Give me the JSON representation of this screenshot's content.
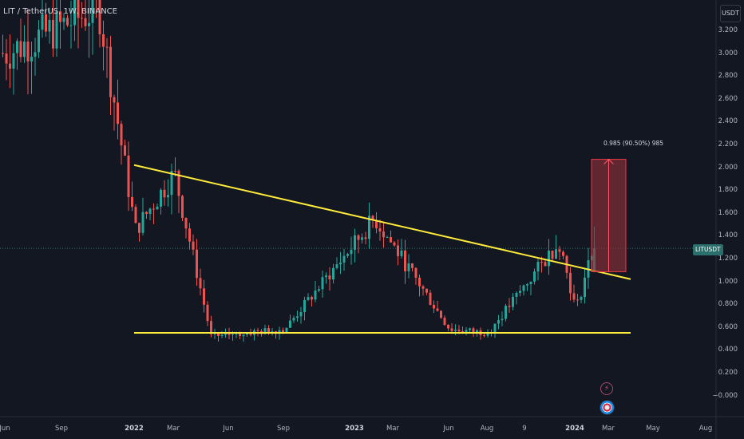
{
  "title": "LIT / TetherUS, 1W, BINANCE",
  "price_axis": {
    "unit": "USDT",
    "ticks": [
      "3.200",
      "3.000",
      "2.800",
      "2.600",
      "2.400",
      "2.200",
      "2.000",
      "1.800",
      "1.600",
      "1.400",
      "1.200",
      "1.000",
      "0.800",
      "0.600",
      "0.400",
      "0.200",
      "−0.000"
    ],
    "current_price_label": "LITUSDT"
  },
  "time_axis": {
    "ticks": [
      {
        "label": "Jun",
        "bold": false
      },
      {
        "label": "Sep",
        "bold": false
      },
      {
        "label": "2022",
        "bold": true
      },
      {
        "label": "Mar",
        "bold": false
      },
      {
        "label": "Jun",
        "bold": false
      },
      {
        "label": "Sep",
        "bold": false
      },
      {
        "label": "2023",
        "bold": true
      },
      {
        "label": "Mar",
        "bold": false
      },
      {
        "label": "Jun",
        "bold": false
      },
      {
        "label": "Aug",
        "bold": false
      },
      {
        "label": "9",
        "bold": false
      },
      {
        "label": "2024",
        "bold": true
      },
      {
        "label": "Mar",
        "bold": false
      },
      {
        "label": "May",
        "bold": false
      },
      {
        "label": "Aug",
        "bold": false
      }
    ]
  },
  "measure": {
    "label": "0.985 (90.50%) 985"
  },
  "icons": [
    "bolt-icon",
    "flag-icon"
  ],
  "colors": {
    "background": "#131722",
    "up": "#26a69a",
    "down": "#ef5350",
    "trendline": "#ffeb3b",
    "measure_fill": "#8b2f3a",
    "measure_stroke": "#f23645",
    "price_line": "#2a6f6b"
  },
  "chart_data": {
    "type": "candlestick",
    "title": "LIT / TetherUS, 1W, BINANCE",
    "x_unit": "week",
    "x_range": [
      "2021-06",
      "2024-08"
    ],
    "ylim": [
      -0.05,
      3.3
    ],
    "current_price": 1.29,
    "key_points": [
      {
        "date": "2021-06",
        "price": 3.0
      },
      {
        "date": "2021-11",
        "price": 3.4
      },
      {
        "date": "2022-01",
        "price": 1.45
      },
      {
        "date": "2022-03",
        "price": 1.95
      },
      {
        "date": "2022-05",
        "price": 0.52
      },
      {
        "date": "2022-09",
        "price": 0.58
      },
      {
        "date": "2023-02",
        "price": 1.55
      },
      {
        "date": "2023-06",
        "price": 0.58
      },
      {
        "date": "2023-08",
        "price": 0.55
      },
      {
        "date": "2023-12",
        "price": 1.35
      },
      {
        "date": "2024-01",
        "price": 0.75
      },
      {
        "date": "2024-02",
        "price": 1.29
      }
    ],
    "annotations": [
      {
        "type": "trendline",
        "from": {
          "date": "2022-01",
          "price": 2.02
        },
        "to": {
          "date": "2024-04",
          "price": 1.02
        }
      },
      {
        "type": "trendline",
        "from": {
          "date": "2022-01",
          "price": 0.55
        },
        "to": {
          "date": "2024-04",
          "price": 0.55
        }
      },
      {
        "type": "price_range",
        "from": 1.085,
        "to": 2.07,
        "label": "0.985 (90.50%) 985"
      }
    ]
  }
}
